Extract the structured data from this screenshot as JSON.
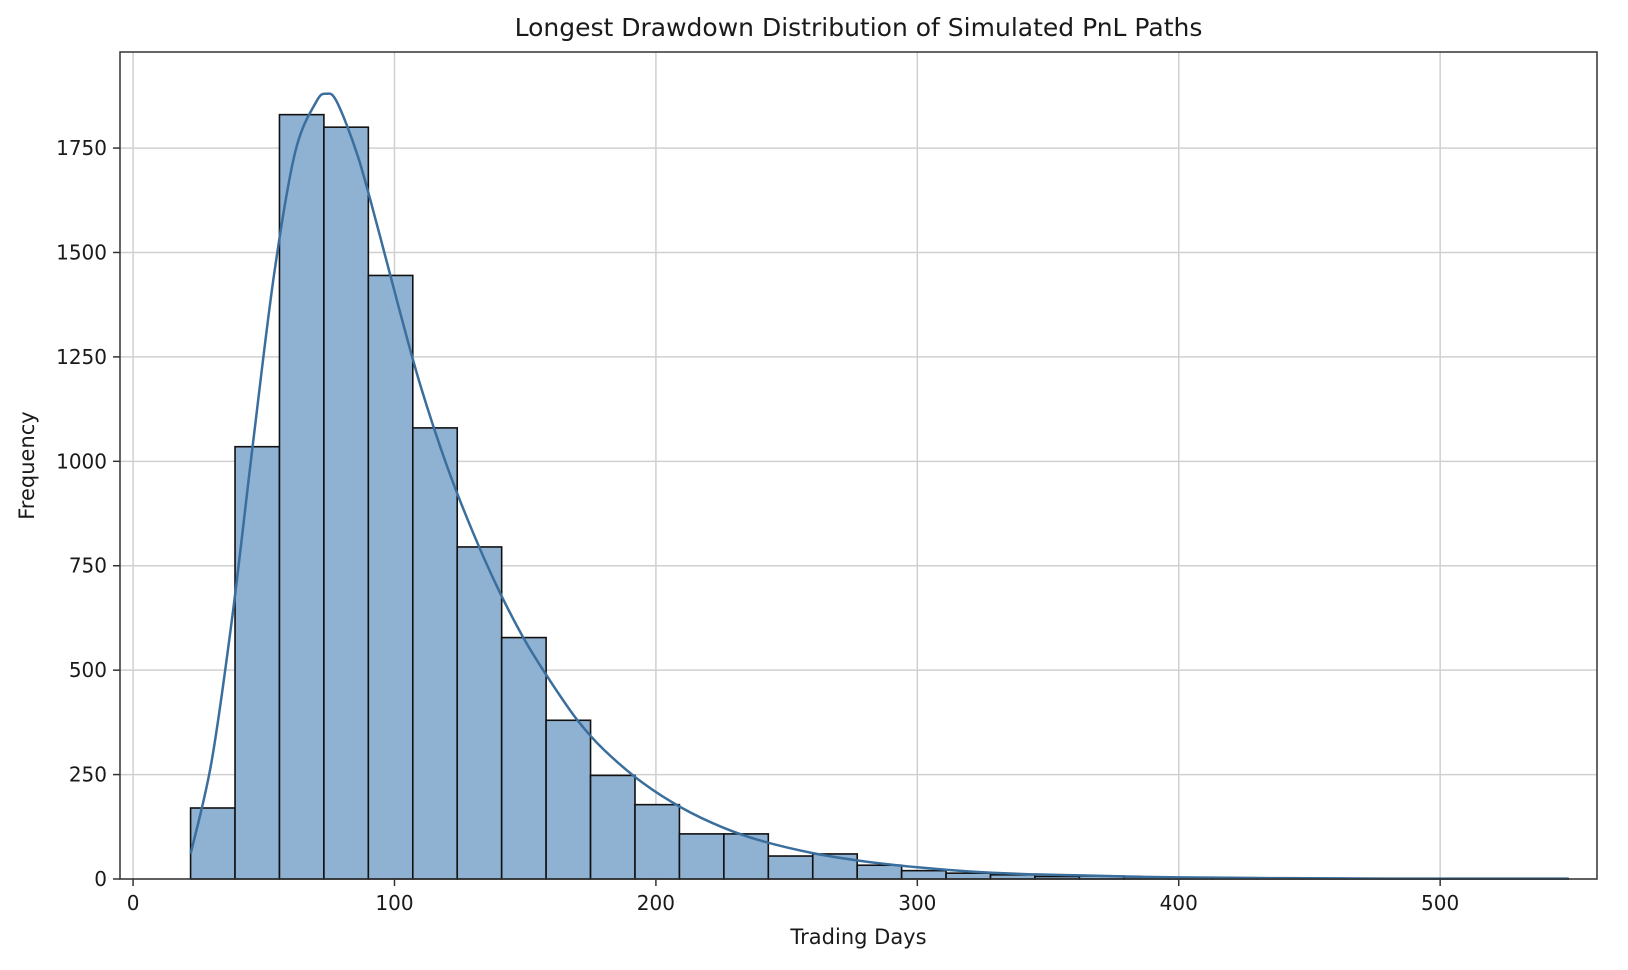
{
  "chart_data": {
    "type": "bar",
    "title": "Longest Drawdown Distribution of Simulated PnL Paths",
    "xlabel": "Trading Days",
    "ylabel": "Frequency",
    "xlim": [
      -5,
      560
    ],
    "ylim": [
      0,
      1980
    ],
    "x_ticks": [
      0,
      100,
      200,
      300,
      400,
      500
    ],
    "y_ticks": [
      0,
      250,
      500,
      750,
      1000,
      1250,
      1500,
      1750
    ],
    "grid": true,
    "bin_edges": [
      22,
      39,
      56,
      73,
      90,
      107,
      124,
      141,
      158,
      175,
      192,
      209,
      226,
      243,
      260,
      277,
      294,
      311,
      328,
      345,
      362,
      379,
      396,
      413,
      430,
      447,
      464,
      481,
      498,
      515,
      532,
      549
    ],
    "values": [
      170,
      1035,
      1830,
      1800,
      1445,
      1080,
      795,
      578,
      380,
      248,
      178,
      108,
      108,
      55,
      60,
      33,
      20,
      14,
      10,
      6,
      7,
      5,
      3,
      2,
      2,
      1,
      1,
      1,
      1,
      1,
      1
    ],
    "kde": {
      "x": [
        22,
        30,
        38,
        46,
        54,
        62,
        70,
        74,
        78,
        86,
        94,
        102,
        110,
        120,
        130,
        140,
        150,
        160,
        170,
        180,
        195,
        210,
        225,
        240,
        260,
        280,
        300,
        320,
        340,
        360,
        380,
        400,
        440,
        480,
        520,
        549
      ],
      "y": [
        60,
        280,
        630,
        1050,
        1450,
        1740,
        1860,
        1880,
        1860,
        1730,
        1550,
        1360,
        1180,
        990,
        830,
        690,
        570,
        470,
        380,
        310,
        230,
        170,
        125,
        92,
        62,
        42,
        28,
        18,
        12,
        9,
        6,
        4,
        2,
        1,
        1,
        1
      ]
    },
    "colors": {
      "bar_fill": "#8fb1d2",
      "bar_edge": "#111111",
      "kde_line": "#3a6e9c",
      "grid": "#d0d0d0",
      "axis": "#333333"
    }
  }
}
